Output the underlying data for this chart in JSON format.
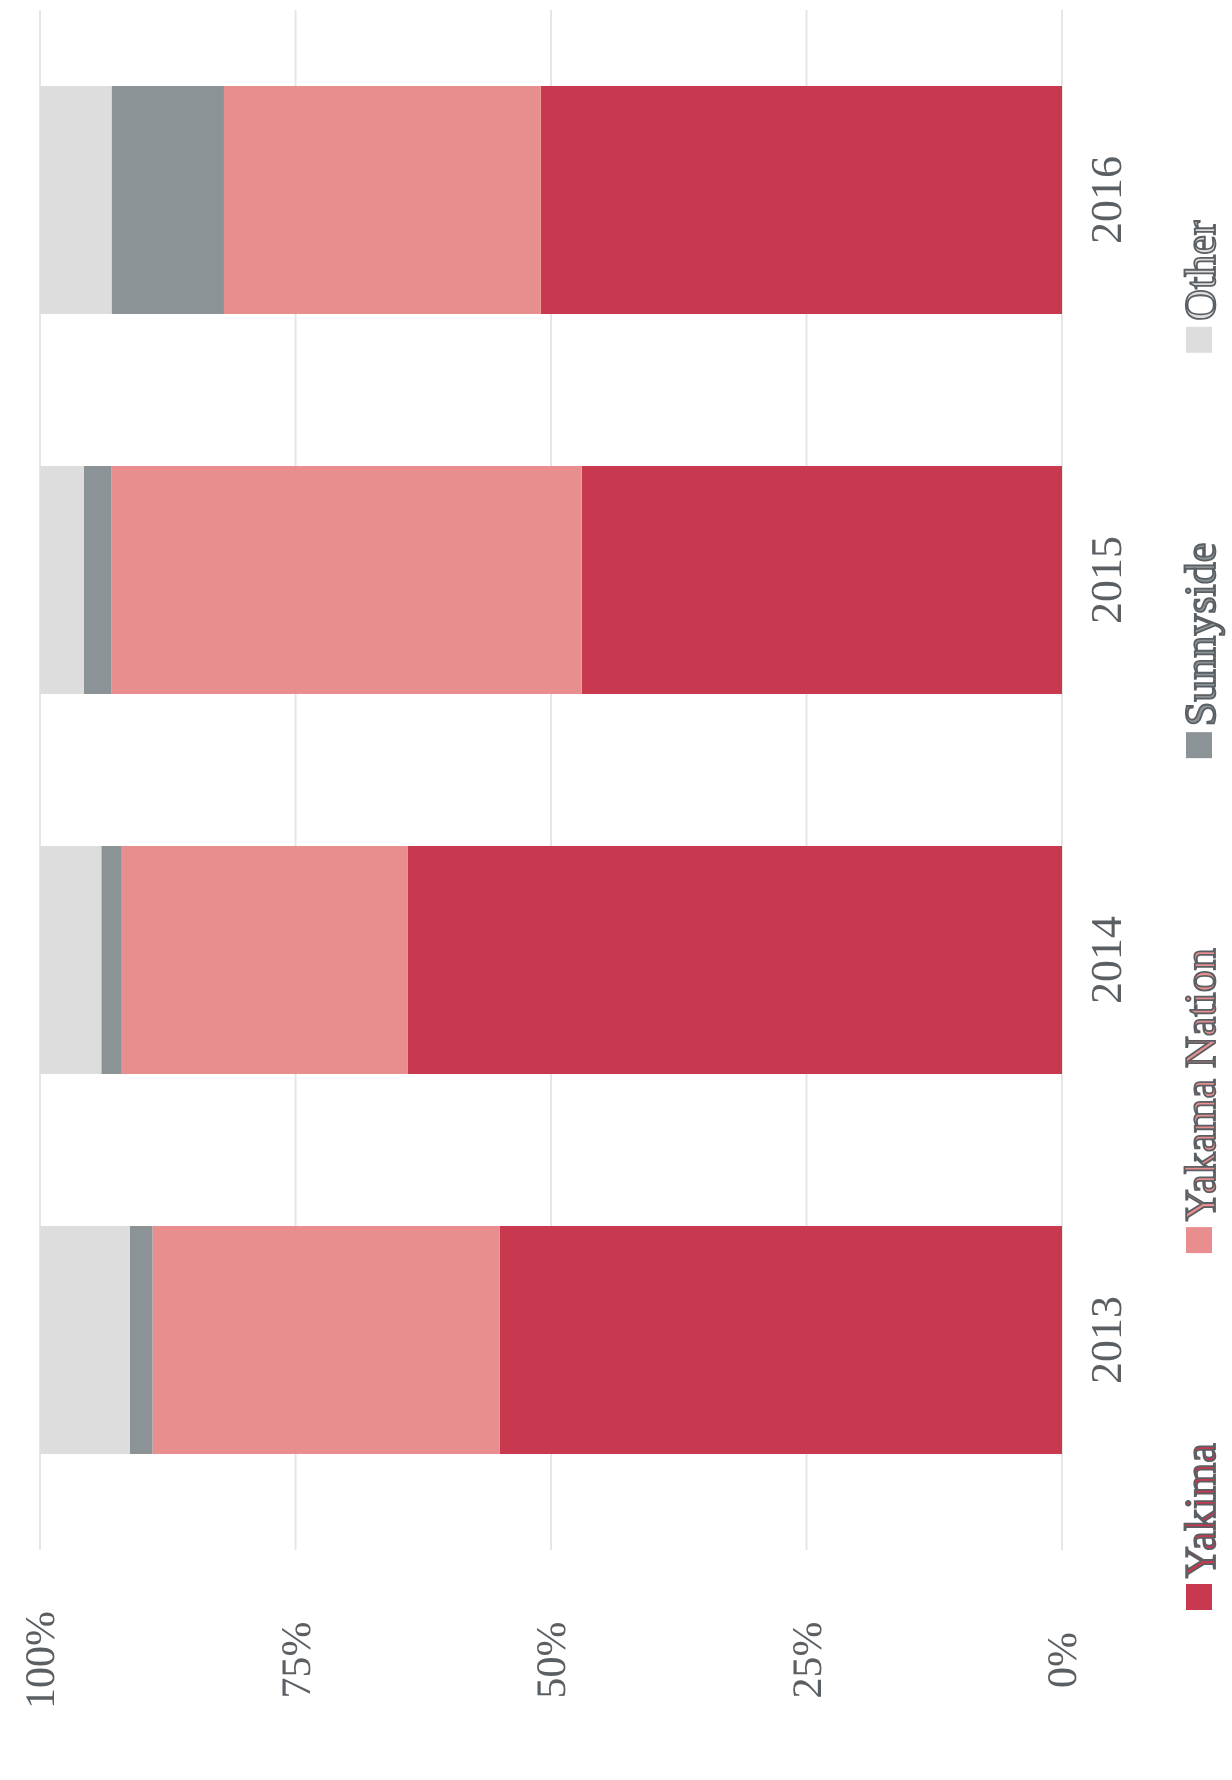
{
  "chart_data": {
    "type": "bar",
    "stacked": true,
    "orientation": "horizontal",
    "categories": [
      "2016",
      "2015",
      "2014",
      "2013"
    ],
    "series": [
      {
        "name": "Yakima",
        "color": "#c8384f",
        "values": [
          51,
          47,
          64,
          55
        ]
      },
      {
        "name": "Yakama Nation",
        "color": "#e98e8e",
        "values": [
          31,
          46,
          28,
          34
        ]
      },
      {
        "name": "Sunnyside",
        "color": "#8c9397",
        "values": [
          11,
          2.7,
          2,
          2.2
        ]
      },
      {
        "name": "Other",
        "color": "#dddddd",
        "values": [
          7,
          4.3,
          6,
          8.8
        ]
      }
    ],
    "xlim": [
      100,
      0
    ],
    "xticks": [
      {
        "value": 100,
        "label": "100%"
      },
      {
        "value": 75,
        "label": "75%"
      },
      {
        "value": 50,
        "label": "50%"
      },
      {
        "value": 25,
        "label": "25%"
      },
      {
        "value": 0,
        "label": "0%"
      }
    ],
    "grid": "x",
    "legend": "right"
  }
}
